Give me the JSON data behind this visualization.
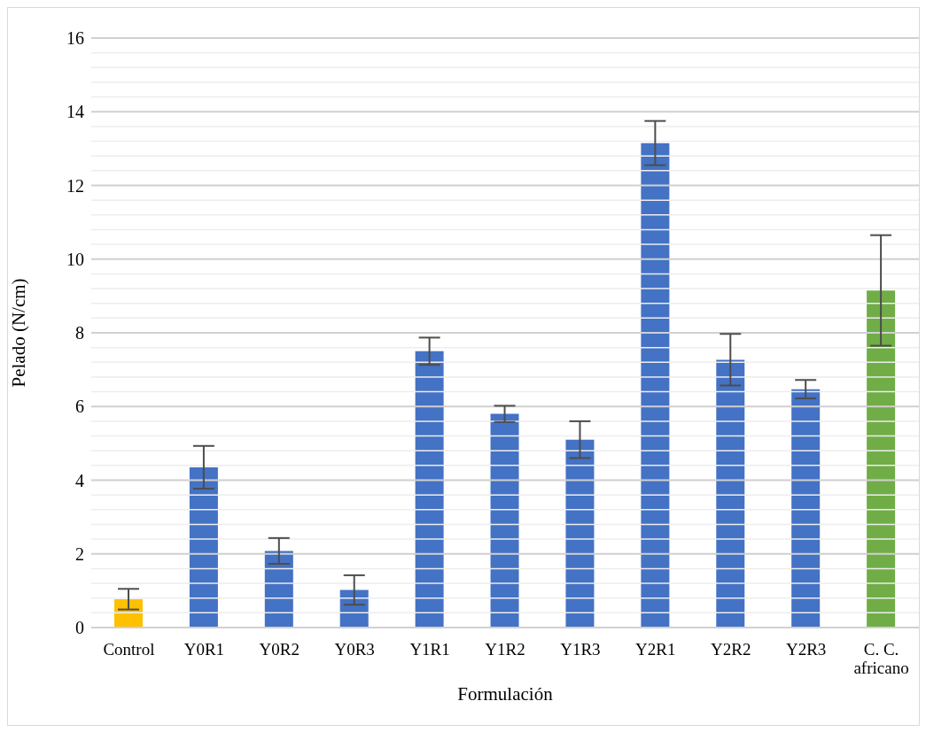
{
  "chart_data": {
    "type": "bar",
    "xlabel": "Formulación",
    "ylabel": "Pelado (N/cm)",
    "categories": [
      "Control",
      "Y0R1",
      "Y0R2",
      "Y0R3",
      "Y1R1",
      "Y1R2",
      "Y1R3",
      "Y2R1",
      "Y2R2",
      "Y2R3",
      "C. C. africano"
    ],
    "values": [
      0.77,
      4.35,
      2.08,
      1.02,
      7.5,
      5.8,
      5.1,
      13.15,
      7.27,
      6.47,
      9.15
    ],
    "errors": [
      0.28,
      0.58,
      0.35,
      0.4,
      0.37,
      0.22,
      0.5,
      0.6,
      0.7,
      0.25,
      1.5
    ],
    "colors": [
      "#ffc000",
      "#4472c4",
      "#4472c4",
      "#4472c4",
      "#4472c4",
      "#4472c4",
      "#4472c4",
      "#4472c4",
      "#4472c4",
      "#4472c4",
      "#70ad47"
    ],
    "ylim": [
      0,
      16
    ],
    "yticks": [
      0,
      {
        "value": 0.4,
        "label": null
      },
      {
        "value": 0.8,
        "label": null
      },
      {
        "value": 1.2,
        "label": null
      },
      {
        "value": 1.6,
        "label": null
      },
      2,
      {
        "value": 2.4,
        "label": null
      },
      {
        "value": 2.8,
        "label": null
      },
      {
        "value": 3.2,
        "label": null
      },
      {
        "value": 3.6,
        "label": null
      },
      4,
      {
        "value": 4.4,
        "label": null
      },
      {
        "value": 4.8,
        "label": null
      },
      {
        "value": 5.2,
        "label": null
      },
      {
        "value": 5.6,
        "label": null
      },
      6,
      {
        "value": 6.4,
        "label": null
      },
      {
        "value": 6.8,
        "label": null
      },
      {
        "value": 7.2,
        "label": null
      },
      {
        "value": 7.6,
        "label": null
      },
      8,
      {
        "value": 8.4,
        "label": null
      },
      {
        "value": 8.8,
        "label": null
      },
      {
        "value": 9.2,
        "label": null
      },
      {
        "value": 9.6,
        "label": null
      },
      10,
      {
        "value": 10.4,
        "label": null
      },
      {
        "value": 10.8,
        "label": null
      },
      {
        "value": 11.2,
        "label": null
      },
      {
        "value": 11.6,
        "label": null
      },
      12,
      {
        "value": 12.4,
        "label": null
      },
      {
        "value": 12.8,
        "label": null
      },
      {
        "value": 13.2,
        "label": null
      },
      {
        "value": 13.6,
        "label": null
      },
      14,
      {
        "value": 14.4,
        "label": null
      },
      {
        "value": 14.8,
        "label": null
      },
      {
        "value": 15.2,
        "label": null
      },
      {
        "value": 15.6,
        "label": null
      },
      16
    ],
    "grid": "y"
  }
}
